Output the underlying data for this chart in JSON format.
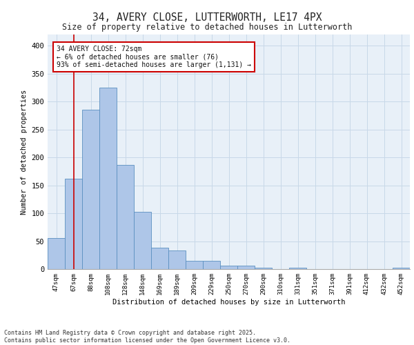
{
  "title1": "34, AVERY CLOSE, LUTTERWORTH, LE17 4PX",
  "title2": "Size of property relative to detached houses in Lutterworth",
  "xlabel": "Distribution of detached houses by size in Lutterworth",
  "ylabel": "Number of detached properties",
  "categories": [
    "47sqm",
    "67sqm",
    "88sqm",
    "108sqm",
    "128sqm",
    "148sqm",
    "169sqm",
    "189sqm",
    "209sqm",
    "229sqm",
    "250sqm",
    "270sqm",
    "290sqm",
    "310sqm",
    "331sqm",
    "351sqm",
    "371sqm",
    "391sqm",
    "412sqm",
    "432sqm",
    "452sqm"
  ],
  "values": [
    55,
    162,
    285,
    325,
    186,
    103,
    38,
    33,
    15,
    15,
    6,
    6,
    3,
    0,
    3,
    0,
    0,
    0,
    0,
    0,
    3
  ],
  "bar_color": "#aec6e8",
  "bar_edge_color": "#5a8fc0",
  "vline_x_idx": 1,
  "vline_color": "#cc0000",
  "annotation_text": "34 AVERY CLOSE: 72sqm\n← 6% of detached houses are smaller (76)\n93% of semi-detached houses are larger (1,131) →",
  "annotation_box_color": "#ffffff",
  "annotation_box_edge_color": "#cc0000",
  "grid_color": "#c8d8e8",
  "bg_color": "#e8f0f8",
  "footer": "Contains HM Land Registry data © Crown copyright and database right 2025.\nContains public sector information licensed under the Open Government Licence v3.0.",
  "ylim": [
    0,
    420
  ],
  "yticks": [
    0,
    50,
    100,
    150,
    200,
    250,
    300,
    350,
    400
  ]
}
